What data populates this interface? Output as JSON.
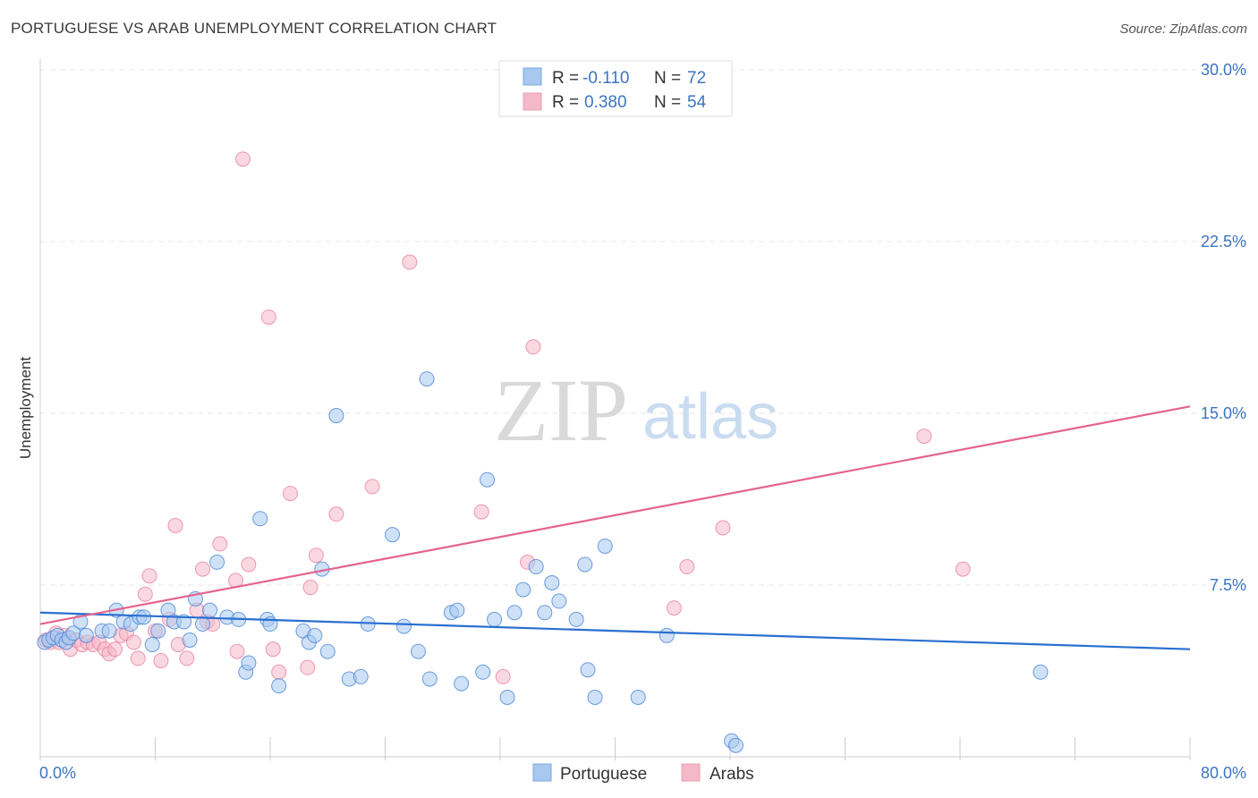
{
  "header": {
    "title": "PORTUGUESE VS ARAB UNEMPLOYMENT CORRELATION CHART",
    "source": "Source: ZipAtlas.com"
  },
  "watermark": {
    "zip": "ZIP",
    "atlas": "atlas"
  },
  "legend_top": {
    "rows": [
      {
        "r_label": "R = ",
        "r_value": "-0.110",
        "n_label": "N = ",
        "n_value": "72",
        "color": "#a8c8f0"
      },
      {
        "r_label": "R = ",
        "r_value": "0.380",
        "n_label": "N = ",
        "n_value": "54",
        "color": "#f5b8c8"
      }
    ]
  },
  "legend_bottom": {
    "items": [
      {
        "label": "Portuguese",
        "color": "#a8c8f0"
      },
      {
        "label": "Arabs",
        "color": "#f5b8c8"
      }
    ]
  },
  "chart_data": {
    "type": "scatter",
    "ylabel": "Unemployment",
    "xlabel": "",
    "xlim": [
      0,
      80
    ],
    "ylim": [
      0,
      30
    ],
    "x_tick_labels": [
      "0.0%",
      "80.0%"
    ],
    "y_ticks": [
      7.5,
      15.0,
      22.5,
      30.0
    ],
    "y_tick_labels": [
      "7.5%",
      "15.0%",
      "22.5%",
      "30.0%"
    ],
    "grid": true,
    "series": [
      {
        "name": "Portuguese",
        "color": "#4a86d6",
        "fill": "#a8c8f0",
        "trend": {
          "x": [
            0,
            80
          ],
          "y": [
            6.3,
            4.7
          ],
          "color": "#2a6fd1"
        },
        "points": [
          [
            0.3,
            5.0
          ],
          [
            0.6,
            5.1
          ],
          [
            0.9,
            5.2
          ],
          [
            1.2,
            5.3
          ],
          [
            1.5,
            5.1
          ],
          [
            1.8,
            5.0
          ],
          [
            2.0,
            5.2
          ],
          [
            2.3,
            5.4
          ],
          [
            2.8,
            5.9
          ],
          [
            3.2,
            5.3
          ],
          [
            4.3,
            5.5
          ],
          [
            4.8,
            5.5
          ],
          [
            5.3,
            6.4
          ],
          [
            5.8,
            5.9
          ],
          [
            6.3,
            5.8
          ],
          [
            6.9,
            6.1
          ],
          [
            7.2,
            6.1
          ],
          [
            7.8,
            4.9
          ],
          [
            8.2,
            5.5
          ],
          [
            8.9,
            6.4
          ],
          [
            9.3,
            5.9
          ],
          [
            10.0,
            5.9
          ],
          [
            10.4,
            5.1
          ],
          [
            10.8,
            6.9
          ],
          [
            11.3,
            5.8
          ],
          [
            11.8,
            6.4
          ],
          [
            12.3,
            8.5
          ],
          [
            13.0,
            6.1
          ],
          [
            13.8,
            6.0
          ],
          [
            14.3,
            3.7
          ],
          [
            14.5,
            4.1
          ],
          [
            15.3,
            10.4
          ],
          [
            15.8,
            6.0
          ],
          [
            16.0,
            5.8
          ],
          [
            16.6,
            3.1
          ],
          [
            18.3,
            5.5
          ],
          [
            18.7,
            5.0
          ],
          [
            19.1,
            5.3
          ],
          [
            19.6,
            8.2
          ],
          [
            20.0,
            4.6
          ],
          [
            20.6,
            14.9
          ],
          [
            21.5,
            3.4
          ],
          [
            22.3,
            3.5
          ],
          [
            22.8,
            5.8
          ],
          [
            24.5,
            9.7
          ],
          [
            25.3,
            5.7
          ],
          [
            26.3,
            4.6
          ],
          [
            26.9,
            16.5
          ],
          [
            27.1,
            3.4
          ],
          [
            28.6,
            6.3
          ],
          [
            29.0,
            6.4
          ],
          [
            29.3,
            3.2
          ],
          [
            30.8,
            3.7
          ],
          [
            31.1,
            12.1
          ],
          [
            31.6,
            6.0
          ],
          [
            32.5,
            2.6
          ],
          [
            33.0,
            6.3
          ],
          [
            33.6,
            7.3
          ],
          [
            34.5,
            8.3
          ],
          [
            35.1,
            6.3
          ],
          [
            35.6,
            7.6
          ],
          [
            36.1,
            6.8
          ],
          [
            37.3,
            6.0
          ],
          [
            37.9,
            8.4
          ],
          [
            38.1,
            3.8
          ],
          [
            38.6,
            2.6
          ],
          [
            39.3,
            9.2
          ],
          [
            41.6,
            2.6
          ],
          [
            43.6,
            5.3
          ],
          [
            48.1,
            0.7
          ],
          [
            48.4,
            0.5
          ],
          [
            69.6,
            3.7
          ]
        ]
      },
      {
        "name": "Arabs",
        "color": "#e8829f",
        "fill": "#f5b8c8",
        "trend": {
          "x": [
            0,
            80
          ],
          "y": [
            5.8,
            15.3
          ],
          "color": "#e4648e"
        },
        "points": [
          [
            0.4,
            5.1
          ],
          [
            0.7,
            5.0
          ],
          [
            1.1,
            5.4
          ],
          [
            1.3,
            5.0
          ],
          [
            1.7,
            5.3
          ],
          [
            2.1,
            4.7
          ],
          [
            2.5,
            5.1
          ],
          [
            2.9,
            4.9
          ],
          [
            3.3,
            5.0
          ],
          [
            3.7,
            4.9
          ],
          [
            4.1,
            5.0
          ],
          [
            4.5,
            4.7
          ],
          [
            4.8,
            4.5
          ],
          [
            5.2,
            4.7
          ],
          [
            5.6,
            5.3
          ],
          [
            6.0,
            5.4
          ],
          [
            6.5,
            5.0
          ],
          [
            6.8,
            4.3
          ],
          [
            7.3,
            7.1
          ],
          [
            7.6,
            7.9
          ],
          [
            8.0,
            5.5
          ],
          [
            8.4,
            4.2
          ],
          [
            9.0,
            6.0
          ],
          [
            9.4,
            10.1
          ],
          [
            9.6,
            4.9
          ],
          [
            10.2,
            4.3
          ],
          [
            10.9,
            6.4
          ],
          [
            11.3,
            8.2
          ],
          [
            11.6,
            5.9
          ],
          [
            12.0,
            5.8
          ],
          [
            12.5,
            9.3
          ],
          [
            13.6,
            7.7
          ],
          [
            13.7,
            4.6
          ],
          [
            14.1,
            26.1
          ],
          [
            14.5,
            8.4
          ],
          [
            15.9,
            19.2
          ],
          [
            16.2,
            4.7
          ],
          [
            16.6,
            3.7
          ],
          [
            17.4,
            11.5
          ],
          [
            18.6,
            3.9
          ],
          [
            18.8,
            7.4
          ],
          [
            19.2,
            8.8
          ],
          [
            20.6,
            10.6
          ],
          [
            23.1,
            11.8
          ],
          [
            25.7,
            21.6
          ],
          [
            30.7,
            10.7
          ],
          [
            32.2,
            3.5
          ],
          [
            33.9,
            8.5
          ],
          [
            34.3,
            17.9
          ],
          [
            44.1,
            6.5
          ],
          [
            45.0,
            8.3
          ],
          [
            47.5,
            10.0
          ],
          [
            61.5,
            14.0
          ],
          [
            64.2,
            8.2
          ]
        ]
      }
    ]
  }
}
